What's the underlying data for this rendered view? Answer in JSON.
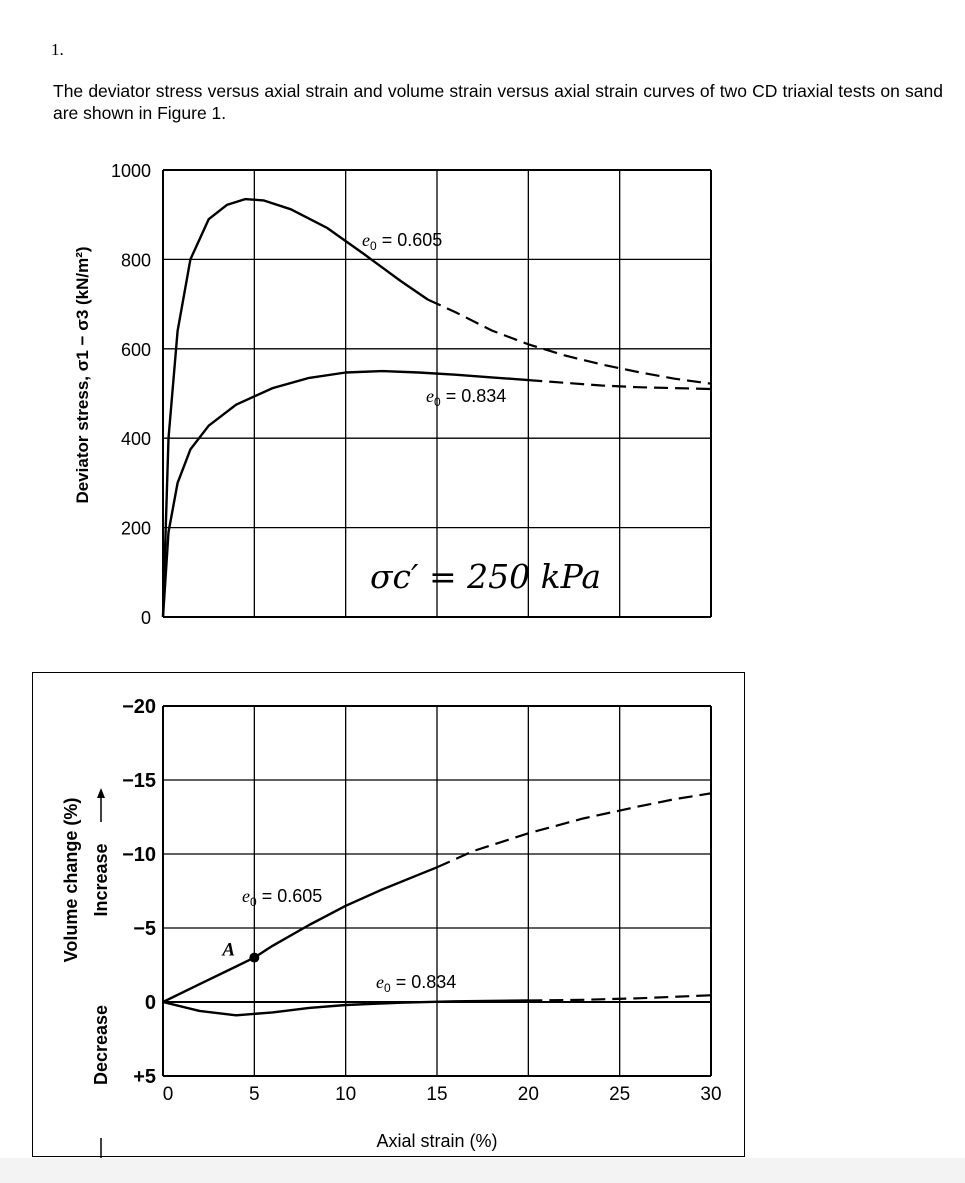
{
  "question": {
    "number": "1.",
    "text": "The deviator stress versus axial strain and volume strain versus axial strain curves of two CD triaxial tests on sand are shown in Figure 1."
  },
  "chart_data": [
    {
      "type": "line",
      "title": "",
      "ylabel": "Deviator stress, σ1 − σ3 (kN/m²)",
      "xlabel": "",
      "xlim": [
        0,
        30
      ],
      "ylim": [
        0,
        1000
      ],
      "x_ticks": [
        0,
        5,
        10,
        15,
        20,
        25,
        30
      ],
      "y_ticks": [
        0,
        200,
        400,
        600,
        800,
        1000
      ],
      "y_tick_labels": [
        "0",
        "200",
        "400",
        "600",
        "800",
        "1000"
      ],
      "grid": true,
      "annotation": "σc′ = 250 kPa",
      "series": [
        {
          "name": "e0 = 0.605",
          "label_main": "e",
          "label_sub": "0",
          "label_rest": " = 0.605",
          "solid": [
            [
              0,
              0
            ],
            [
              0.3,
              400
            ],
            [
              0.8,
              640
            ],
            [
              1.5,
              800
            ],
            [
              2.5,
              890
            ],
            [
              3.5,
              922
            ],
            [
              4.5,
              935
            ],
            [
              5.5,
              932
            ],
            [
              7,
              912
            ],
            [
              9,
              870
            ],
            [
              11,
              812
            ],
            [
              13,
              752
            ],
            [
              14.5,
              710
            ]
          ],
          "dashed": [
            [
              14.5,
              710
            ],
            [
              16,
              682
            ],
            [
              18,
              641
            ],
            [
              20,
              610
            ],
            [
              22,
              585
            ],
            [
              24,
              565
            ],
            [
              26,
              548
            ],
            [
              28,
              533
            ],
            [
              30,
              522
            ]
          ]
        },
        {
          "name": "e0 = 0.834",
          "label_main": "e",
          "label_sub": "0",
          "label_rest": " = 0.834",
          "solid": [
            [
              0,
              0
            ],
            [
              0.3,
              190
            ],
            [
              0.8,
              300
            ],
            [
              1.5,
              375
            ],
            [
              2.5,
              428
            ],
            [
              4,
              475
            ],
            [
              6,
              512
            ],
            [
              8,
              535
            ],
            [
              10,
              547
            ],
            [
              12,
              550
            ],
            [
              14,
              547
            ],
            [
              16,
              542
            ],
            [
              18,
              536
            ],
            [
              20,
              530
            ]
          ],
          "dashed": [
            [
              20,
              530
            ],
            [
              22,
              524
            ],
            [
              24,
              518
            ],
            [
              26,
              514
            ],
            [
              28,
              512
            ],
            [
              30,
              510
            ]
          ]
        }
      ]
    },
    {
      "type": "line",
      "title": "",
      "ylabel": "Volume change (%)",
      "ylabel_up": "Increase",
      "ylabel_down": "Decrease",
      "xlabel": "Axial strain (%)",
      "xlim": [
        0,
        30
      ],
      "ylim": [
        -20,
        5
      ],
      "x_ticks": [
        0,
        5,
        10,
        15,
        20,
        25,
        30
      ],
      "x_tick_labels": [
        "0",
        "5",
        "10",
        "15",
        "20",
        "25",
        "30"
      ],
      "y_ticks": [
        -20,
        -15,
        -10,
        -5,
        0,
        5
      ],
      "y_tick_labels": [
        "−20",
        "−15",
        "−10",
        "−5",
        "0",
        "+5"
      ],
      "grid": true,
      "point": {
        "label": "A",
        "x": 5,
        "y": -3
      },
      "series": [
        {
          "name": "e0 = 0.605",
          "label_main": "e",
          "label_sub": "0",
          "label_rest": " = 0.605",
          "solid": [
            [
              0,
              0
            ],
            [
              2,
              -1.2
            ],
            [
              4,
              -2.4
            ],
            [
              5,
              -3
            ],
            [
              6,
              -3.8
            ],
            [
              8,
              -5.2
            ],
            [
              10,
              -6.5
            ],
            [
              12,
              -7.6
            ],
            [
              14,
              -8.6
            ],
            [
              15,
              -9.1
            ]
          ],
          "dashed": [
            [
              15,
              -9.1
            ],
            [
              17,
              -10.2
            ],
            [
              20,
              -11.4
            ],
            [
              23,
              -12.4
            ],
            [
              26,
              -13.2
            ],
            [
              28,
              -13.7
            ],
            [
              30,
              -14.1
            ]
          ]
        },
        {
          "name": "e0 = 0.834",
          "label_main": "e",
          "label_sub": "0",
          "label_rest": " = 0.834",
          "solid": [
            [
              0,
              0
            ],
            [
              2,
              0.6
            ],
            [
              4,
              0.9
            ],
            [
              6,
              0.7
            ],
            [
              8,
              0.4
            ],
            [
              10,
              0.2
            ],
            [
              13,
              0.05
            ],
            [
              16,
              -0.05
            ],
            [
              20,
              -0.1
            ]
          ],
          "dashed": [
            [
              20,
              -0.1
            ],
            [
              23,
              -0.15
            ],
            [
              26,
              -0.25
            ],
            [
              30,
              -0.45
            ]
          ]
        }
      ]
    }
  ]
}
